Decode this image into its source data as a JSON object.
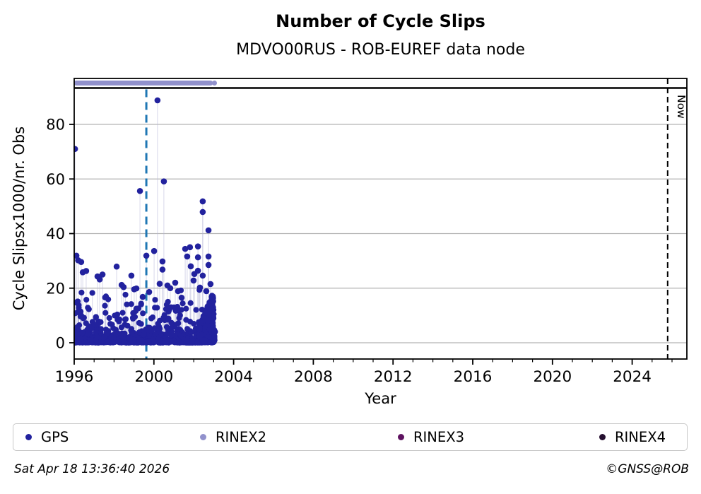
{
  "figure": {
    "title": "Number of Cycle Slips",
    "subtitle": "MDVO00RUS - ROB-EUREF data node"
  },
  "footer": {
    "timestamp": "Sat Apr 18 13:36:40 2026",
    "credit": "©GNSS@ROB"
  },
  "legend": {
    "items": [
      {
        "label": "GPS",
        "color": "#22229e"
      },
      {
        "label": "RINEX2",
        "color": "#9191cc"
      },
      {
        "label": "RINEX3",
        "color": "#5e1260"
      },
      {
        "label": "RINEX4",
        "color": "#261030"
      }
    ]
  },
  "chart_data": {
    "type": "scatter",
    "title": "Number of Cycle Slips",
    "subtitle": "MDVO00RUS - ROB-EUREF data node",
    "xlabel": "Year",
    "ylabel": "Cycle Slipsx1000/nr. Obs",
    "xlim": [
      1996,
      2026.75
    ],
    "ylim": [
      -6,
      96.8
    ],
    "x_ticks": [
      1996,
      2000,
      2004,
      2008,
      2012,
      2016,
      2020,
      2024
    ],
    "x_minor_step_years": 1,
    "y_ticks": [
      0,
      20,
      40,
      60,
      80
    ],
    "grid": "horizontal-gray",
    "legend_position": "bottom",
    "series_name": "GPS",
    "marker_color": "#22229e",
    "stem_color": "#b7b7d9",
    "grid_color": "#b3b3b3",
    "dashed_marker": {
      "year": 1999.62,
      "color": "#1f77b4"
    },
    "now_marker": {
      "year": 2025.78,
      "label": "Now",
      "color": "#000000"
    },
    "availability_bars": [
      {
        "name": "RINEX2",
        "from": 1996.0,
        "to": 2002.84,
        "extra_dot": 2003.04,
        "color": "#9191cc"
      }
    ],
    "peaks": [
      [
        1996.04,
        71.0
      ],
      [
        1996.11,
        31.9
      ],
      [
        1996.2,
        30.2
      ],
      [
        1996.35,
        29.6
      ],
      [
        1996.43,
        25.8
      ],
      [
        1996.6,
        26.3
      ],
      [
        1997.17,
        24.3
      ],
      [
        1997.28,
        23.2
      ],
      [
        1997.42,
        25.0
      ],
      [
        1998.13,
        27.9
      ],
      [
        1998.38,
        21.2
      ],
      [
        1998.48,
        20.4
      ],
      [
        1998.87,
        24.6
      ],
      [
        1999.01,
        19.6
      ],
      [
        1999.12,
        19.9
      ],
      [
        1999.3,
        55.6
      ],
      [
        1999.44,
        16.8
      ],
      [
        1999.62,
        31.9
      ],
      [
        1999.76,
        18.6
      ],
      [
        2000.01,
        33.6
      ],
      [
        2000.18,
        88.8
      ],
      [
        2000.29,
        21.6
      ],
      [
        2000.43,
        29.8
      ],
      [
        2000.43,
        26.8
      ],
      [
        2000.5,
        59.1
      ],
      [
        2000.68,
        21.0
      ],
      [
        2000.82,
        20.0
      ],
      [
        2001.07,
        22.0
      ],
      [
        2001.21,
        18.9
      ],
      [
        2001.39,
        16.5
      ],
      [
        2001.57,
        34.4
      ],
      [
        2001.67,
        31.6
      ],
      [
        2001.81,
        35.0
      ],
      [
        2001.85,
        28.0
      ],
      [
        2001.99,
        22.8
      ],
      [
        2002.03,
        25.2
      ],
      [
        2002.21,
        35.3
      ],
      [
        2002.21,
        31.3
      ],
      [
        2002.21,
        26.4
      ],
      [
        2002.31,
        20.2
      ],
      [
        2002.45,
        51.8
      ],
      [
        2002.45,
        47.9
      ],
      [
        2002.45,
        24.6
      ],
      [
        2002.63,
        18.9
      ],
      [
        2002.74,
        41.2
      ],
      [
        2002.74,
        31.6
      ],
      [
        2002.74,
        28.5
      ],
      [
        2002.84,
        21.5
      ]
    ],
    "background_points": {
      "note": "dense unreadable low-value cloud approximated procedurally",
      "seed": 7,
      "bands": [
        {
          "from": 1996.0,
          "to": 2003.05,
          "count": 760,
          "dist": "exp",
          "scale": 1.25,
          "cap": 9
        },
        {
          "from": 1996.0,
          "to": 2003.0,
          "count": 120,
          "dist": "uniform",
          "min": 3,
          "max": 13
        },
        {
          "from": 1996.0,
          "to": 2002.3,
          "count": 26,
          "dist": "uniform",
          "min": 12,
          "max": 19.5
        },
        {
          "from": 2002.25,
          "to": 2003.0,
          "count": 300,
          "dist": "wedge",
          "base": 6,
          "grow": 17,
          "cap": 18.5
        },
        {
          "from": 2003.0,
          "to": 2003.07,
          "count": 6,
          "dist": "uniform",
          "min": 0,
          "max": 5.5
        }
      ]
    }
  }
}
